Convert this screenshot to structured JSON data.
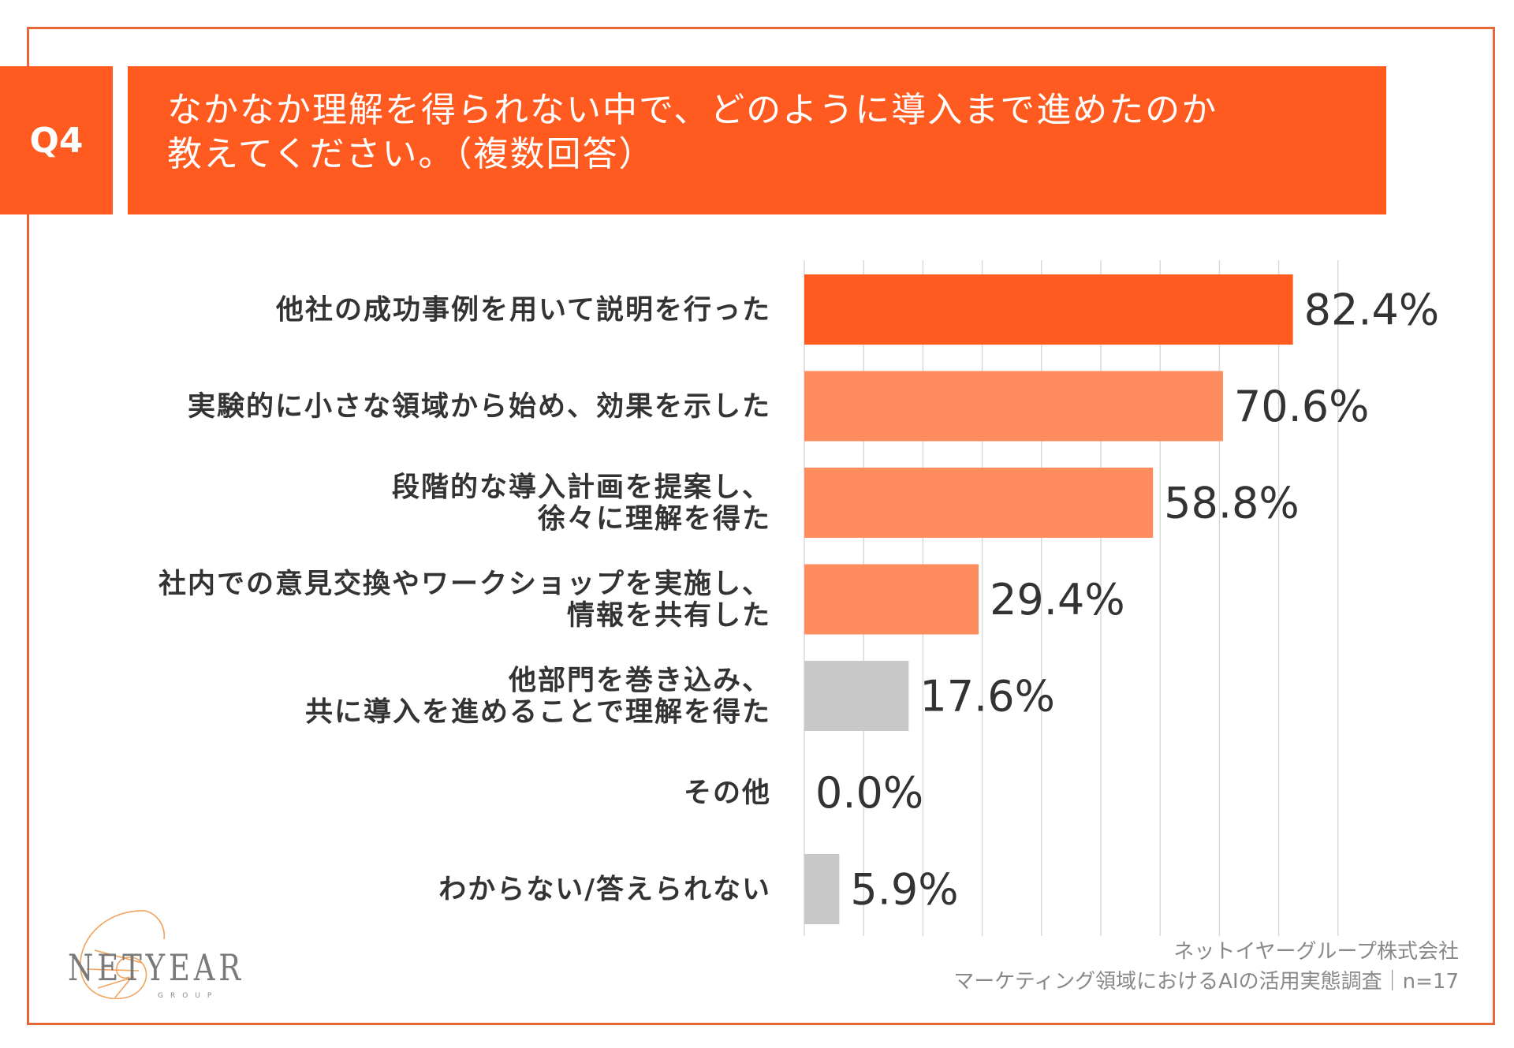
{
  "header": {
    "question_label": "Q4",
    "title_line1": "なかなか理解を得られない中で、どのように導入まで進めたのか",
    "title_line2": "教えてください。（複数回答）"
  },
  "colors": {
    "accent": "#ff5a1f",
    "top_bar": "#ff5a1f",
    "secondary_bar": "#ff8c5f",
    "gray_bar": "#c8c8c8",
    "frame": "#e8673a"
  },
  "chart_data": {
    "type": "bar",
    "orientation": "horizontal",
    "xlim": [
      0,
      90
    ],
    "grid": true,
    "categories": [
      [
        "他社の成功事例を用いて説明を行った"
      ],
      [
        "実験的に小さな領域から始め、効果を示した"
      ],
      [
        "段階的な導入計画を提案し、",
        "徐々に理解を得た"
      ],
      [
        "社内での意見交換やワークショップを実施し、",
        "情報を共有した"
      ],
      [
        "他部門を巻き込み、",
        "共に導入を進めることで理解を得た"
      ],
      [
        "その他"
      ],
      [
        "わからない/答えられない"
      ]
    ],
    "values": [
      82.4,
      70.6,
      58.8,
      29.4,
      17.6,
      0.0,
      5.9
    ],
    "value_labels": [
      "82.4%",
      "70.6%",
      "58.8%",
      "29.4%",
      "17.6%",
      "0.0%",
      "5.9%"
    ],
    "bar_color_keys": [
      "top_bar",
      "secondary_bar",
      "secondary_bar",
      "secondary_bar",
      "gray_bar",
      "gray_bar",
      "gray_bar"
    ]
  },
  "footer": {
    "company": "ネットイヤーグループ株式会社",
    "survey": "マーケティング領域におけるAIの活用実態調査｜n=17"
  },
  "logo": {
    "wordmark": "NETYEAR",
    "subtext": "GROUP"
  }
}
